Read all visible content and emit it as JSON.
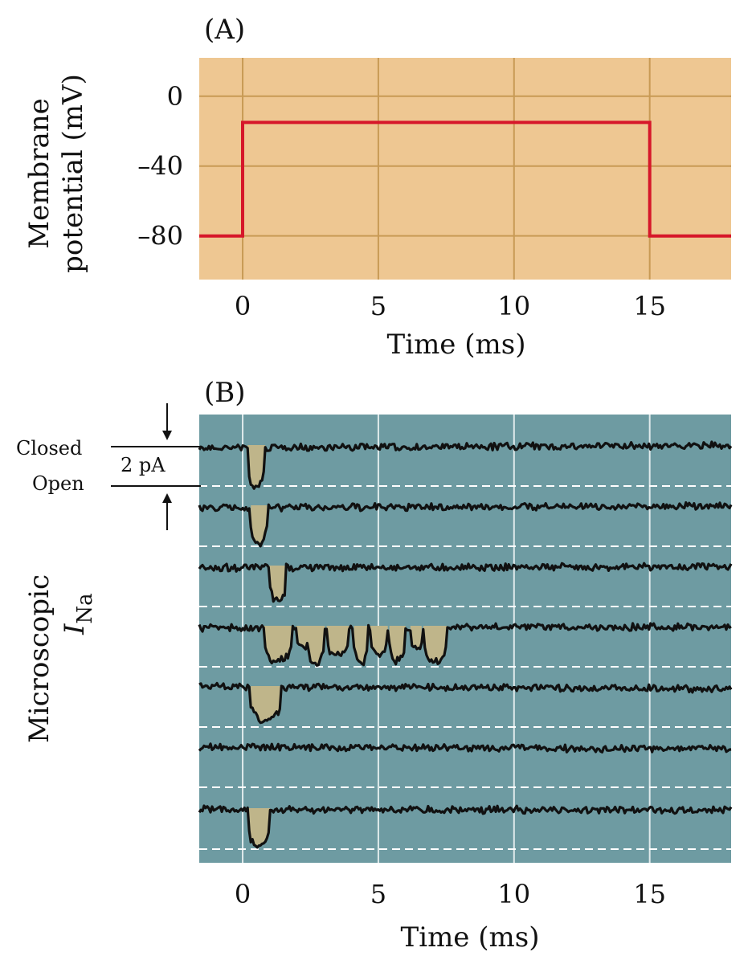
{
  "panels": {
    "a_label": "(A)",
    "b_label": "(B)"
  },
  "colors": {
    "panel_a_bg": "#eec792",
    "panel_a_grid": "#c89a55",
    "step_line": "#d6172a",
    "panel_b_bg": "#6e9ba2",
    "panel_b_grid": "#dfeaeb",
    "trace": "#111111",
    "open_fill": "#bfb58a"
  },
  "chart_data": [
    {
      "type": "line",
      "panel": "A",
      "ylabel_line1": "Membrane",
      "ylabel_line2": "potential (mV)",
      "xlabel": "Time (ms)",
      "xlim": [
        -1.6,
        18
      ],
      "ylim": [
        -105,
        22
      ],
      "x_ticks": [
        0,
        5,
        10,
        15
      ],
      "x_tick_labels": [
        "0",
        "5",
        "10",
        "15"
      ],
      "y_ticks": [
        0,
        -40,
        -80
      ],
      "y_tick_labels": [
        "0",
        "–40",
        "–80"
      ],
      "grid": true,
      "series": [
        {
          "x": [
            -1.6,
            0,
            0,
            15,
            15,
            18
          ],
          "y": [
            -80,
            -80,
            -15,
            -15,
            -80,
            -80
          ]
        }
      ]
    },
    {
      "type": "line",
      "panel": "B",
      "ylabel_line1": "Microscopic",
      "ylabel_symbol": "I",
      "ylabel_sub": "Na",
      "xlabel": "Time (ms)",
      "xlim": [
        -1.6,
        18
      ],
      "x_ticks": [
        0,
        5,
        10,
        15
      ],
      "x_tick_labels": [
        "0",
        "5",
        "10",
        "15"
      ],
      "grid": true,
      "closed_label": "Closed",
      "open_label": "Open",
      "scale_label": "2 pA",
      "scale_pA": 2,
      "trace_baselines_note": "closed level = 0 pA, open level = -2 pA",
      "traces": [
        {
          "openings": [
            [
              0.2,
              0.8,
              1.0
            ]
          ]
        },
        {
          "openings": [
            [
              0.3,
              0.9,
              0.9
            ]
          ]
        },
        {
          "openings": [
            [
              1.0,
              1.6,
              0.85
            ]
          ]
        },
        {
          "openings": [
            [
              0.8,
              1.8,
              0.85
            ],
            [
              2.0,
              2.4,
              0.55
            ],
            [
              2.4,
              3.0,
              0.95
            ],
            [
              3.1,
              3.9,
              0.7
            ],
            [
              4.1,
              4.6,
              0.9
            ],
            [
              4.7,
              5.3,
              0.65
            ],
            [
              5.4,
              6.0,
              0.8
            ],
            [
              6.2,
              6.6,
              0.55
            ],
            [
              6.7,
              7.5,
              0.85
            ]
          ]
        },
        {
          "openings": [
            [
              0.3,
              1.4,
              0.85
            ]
          ]
        },
        {
          "openings": []
        },
        {
          "openings": [
            [
              0.2,
              1.0,
              0.9
            ]
          ]
        }
      ]
    }
  ]
}
